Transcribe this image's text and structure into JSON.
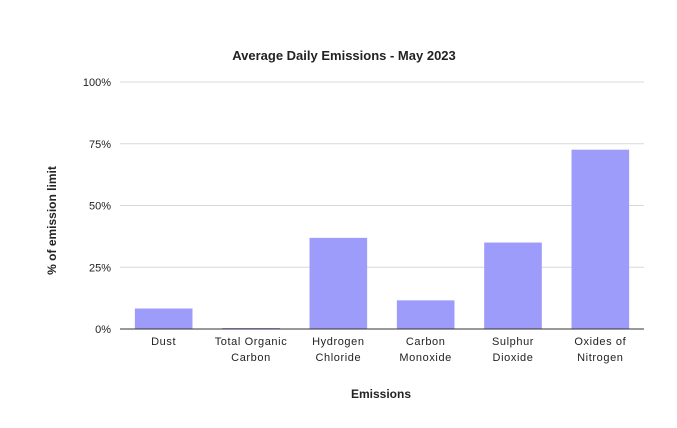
{
  "chart_data": {
    "type": "bar",
    "title": "Average Daily Emissions - May 2023",
    "xlabel": "Emissions",
    "ylabel": "% of emission limit",
    "ylim": [
      0,
      100
    ],
    "yticks": [
      0,
      25,
      50,
      75,
      100
    ],
    "ytick_labels": [
      "0%",
      "25%",
      "50%",
      "75%",
      "100%"
    ],
    "categories": [
      [
        "Dust"
      ],
      [
        "Total Organic",
        "Carbon"
      ],
      [
        "Hydrogen",
        "Chloride"
      ],
      [
        "Carbon",
        "Monoxide"
      ],
      [
        "Sulphur",
        "Dioxide"
      ],
      [
        "Oxides of",
        "Nitrogen"
      ]
    ],
    "values": [
      8.3,
      0.4,
      36.9,
      11.6,
      35.0,
      72.6
    ],
    "grid": true,
    "legend": "none",
    "colors": {
      "bar": "#9e9cfb",
      "grid": "#d9d9d9",
      "axis": "#333333",
      "text": "#222222"
    }
  }
}
